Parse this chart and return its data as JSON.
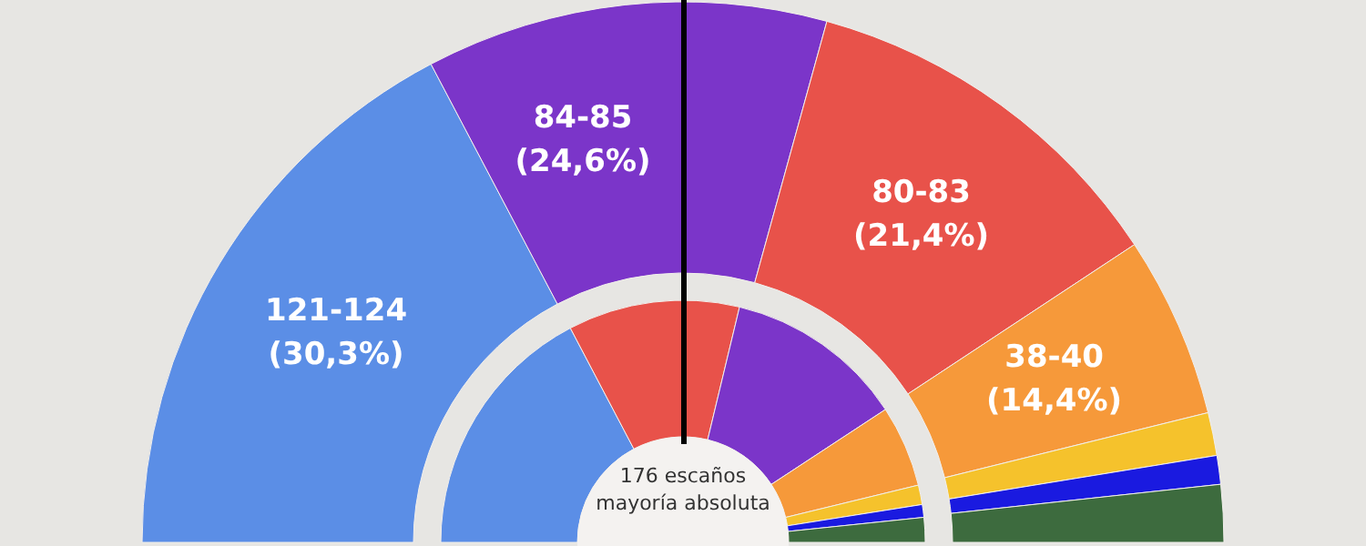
{
  "chart_data": {
    "type": "donut",
    "categories": [
      null,
      null,
      null,
      null,
      null,
      null,
      null
    ],
    "series": [
      {
        "values": [
          121,
          84,
          80,
          38,
          9,
          6,
          12
        ],
        "colors": [
          "#5b8ee6",
          "#7b35c9",
          "#e8524a",
          "#f6993a",
          "#f5c22c",
          "#1a1ae0",
          "#3d6b3e"
        ],
        "value_labels": [
          "121-124\n(30,3%)",
          "84-85\n(24,6%)",
          "80-83\n(21,4%)",
          "38-40\n(14,4%)",
          null,
          null,
          null
        ]
      },
      {
        "values": [
          34.6,
          22.9,
          24.0,
          10.9,
          2.6,
          1.7,
          3.3
        ],
        "colors": [
          "#5b8ee6",
          "#e8524a",
          "#7b35c9",
          "#f6993a",
          "#f5c22c",
          "#1a1ae0",
          "#3d6b3e"
        ]
      }
    ],
    "annotations": [
      "176 escaños\nmayoría absoluta"
    ]
  }
}
